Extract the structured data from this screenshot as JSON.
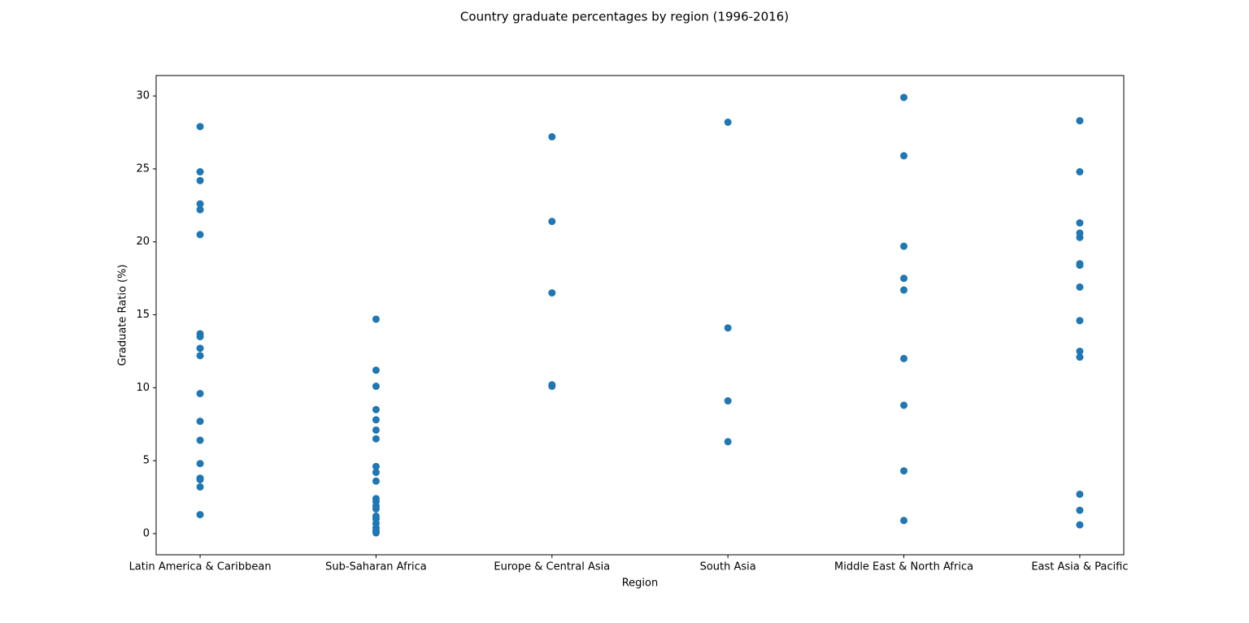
{
  "chart_data": {
    "type": "scatter",
    "title": "Country graduate percentages by region (1996-2016)",
    "xlabel": "Region",
    "ylabel": "Graduate Ratio (%)",
    "color": "#1f77b4",
    "categories": [
      "Latin America & Caribbean",
      "Sub-Saharan Africa",
      "Europe & Central Asia",
      "South Asia",
      "Middle East & North Africa",
      "East Asia & Pacific"
    ],
    "values": [
      [
        27.9,
        24.8,
        24.2,
        22.6,
        22.2,
        20.5,
        13.7,
        13.5,
        12.7,
        12.2,
        9.6,
        7.7,
        6.4,
        4.8,
        3.8,
        3.7,
        3.2,
        1.3
      ],
      [
        14.7,
        11.2,
        10.1,
        8.5,
        7.8,
        7.1,
        6.5,
        4.6,
        4.2,
        3.6,
        2.4,
        2.2,
        1.9,
        1.7,
        1.2,
        1.0,
        0.7,
        0.4,
        0.2,
        0.05
      ],
      [
        27.2,
        21.4,
        16.5,
        10.2,
        10.1
      ],
      [
        28.2,
        14.1,
        9.1,
        6.3
      ],
      [
        29.9,
        25.9,
        19.7,
        17.5,
        16.7,
        12.0,
        8.8,
        4.3,
        0.9
      ],
      [
        28.3,
        24.8,
        21.3,
        20.6,
        20.3,
        18.5,
        18.4,
        16.9,
        14.6,
        12.5,
        12.1,
        2.7,
        1.6,
        0.6
      ]
    ],
    "ylim": [
      -1.45,
      31.4
    ],
    "yticks": [
      0,
      5,
      10,
      15,
      20,
      25,
      30
    ]
  }
}
